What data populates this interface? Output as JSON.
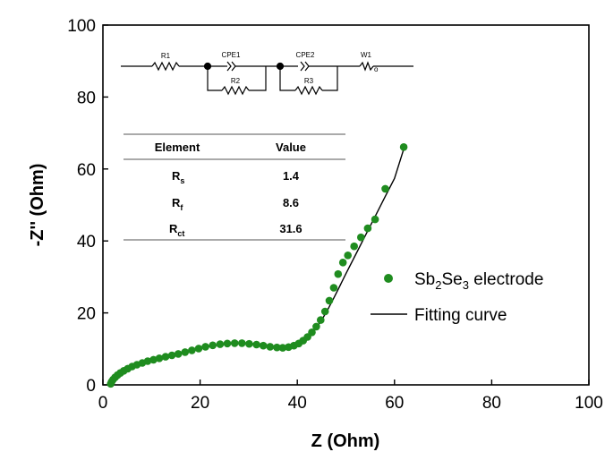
{
  "chart_data": {
    "type": "scatter",
    "xlabel": "Z (Ohm)",
    "ylabel": "-Z'' (Ohm)",
    "xlim": [
      0,
      100
    ],
    "ylim": [
      0,
      100
    ],
    "x_ticks": [
      "0",
      "20",
      "40",
      "60",
      "80",
      "100"
    ],
    "y_ticks": [
      "0",
      "20",
      "40",
      "60",
      "80",
      "100"
    ],
    "legend_position": "center-right",
    "series": [
      {
        "name_parts": [
          "Sb",
          "2",
          "Se",
          "3",
          " electrode"
        ],
        "style": "markers",
        "color": "#1f8c1f",
        "x": [
          1.6,
          1.8,
          2.1,
          2.5,
          3.0,
          3.6,
          4.3,
          5.1,
          6.0,
          7.0,
          8.1,
          9.2,
          10.4,
          11.6,
          12.9,
          14.2,
          15.5,
          16.9,
          18.3,
          19.7,
          21.1,
          22.6,
          24.1,
          25.6,
          27.1,
          28.6,
          30.1,
          31.6,
          33.0,
          34.4,
          35.8,
          37.0,
          38.2,
          39.3,
          40.3,
          41.2,
          42.1,
          43.0,
          43.9,
          44.8,
          45.7,
          46.6,
          47.5,
          48.4,
          49.4,
          50.4,
          51.7,
          53.1,
          54.5,
          56.0,
          58.1,
          61.9
        ],
        "y": [
          0.3,
          0.9,
          1.5,
          2.1,
          2.7,
          3.3,
          3.9,
          4.5,
          5.1,
          5.6,
          6.1,
          6.6,
          7.0,
          7.4,
          7.8,
          8.2,
          8.6,
          9.1,
          9.6,
          10.1,
          10.6,
          11.0,
          11.3,
          11.5,
          11.6,
          11.6,
          11.4,
          11.2,
          10.9,
          10.6,
          10.4,
          10.3,
          10.5,
          10.9,
          11.5,
          12.3,
          13.3,
          14.6,
          16.2,
          18.0,
          20.4,
          23.4,
          27.0,
          30.8,
          34.0,
          36.0,
          38.5,
          41.0,
          43.5,
          46.0,
          54.5,
          66.1
        ]
      },
      {
        "name": "Fitting curve",
        "style": "line",
        "color": "#000000",
        "x": [
          1.3,
          1.6,
          2.0,
          2.5,
          3.2,
          4.3,
          5.6,
          7.2,
          9.0,
          11.0,
          13.2,
          15.5,
          18.0,
          20.5,
          23.0,
          25.5,
          28.0,
          30.5,
          33.0,
          35.0,
          37.0,
          38.8,
          40.3,
          41.6,
          42.8,
          44.0,
          45.2,
          46.4,
          47.6,
          48.8,
          50.0,
          52.0,
          54.0,
          56.0,
          58.0,
          60.0,
          62.0
        ],
        "y": [
          0.0,
          0.6,
          1.3,
          2.0,
          2.8,
          3.8,
          4.8,
          5.7,
          6.6,
          7.4,
          8.1,
          8.8,
          9.6,
          10.3,
          10.9,
          11.3,
          11.5,
          11.5,
          11.2,
          10.8,
          10.5,
          10.6,
          11.2,
          12.3,
          13.9,
          15.9,
          18.4,
          21.3,
          24.4,
          27.6,
          30.9,
          36.2,
          41.5,
          46.8,
          52.1,
          57.4,
          66.0
        ]
      }
    ],
    "legend": {
      "items": [
        {
          "label_parts": [
            "Sb",
            "2",
            "Se",
            "3",
            " electrode"
          ]
        },
        {
          "label": "Fitting curve"
        }
      ]
    }
  },
  "inset_table": {
    "headers": [
      "Element",
      "Value"
    ],
    "rows": [
      {
        "symbol": "R",
        "sub": "s",
        "value": "1.4"
      },
      {
        "symbol": "R",
        "sub": "f",
        "value": "8.6"
      },
      {
        "symbol": "R",
        "sub": "ct",
        "value": "31.6"
      }
    ]
  },
  "circuit": {
    "labels": [
      "R1",
      "CPE1",
      "R2",
      "CPE2",
      "R3",
      "W1",
      "o"
    ]
  }
}
